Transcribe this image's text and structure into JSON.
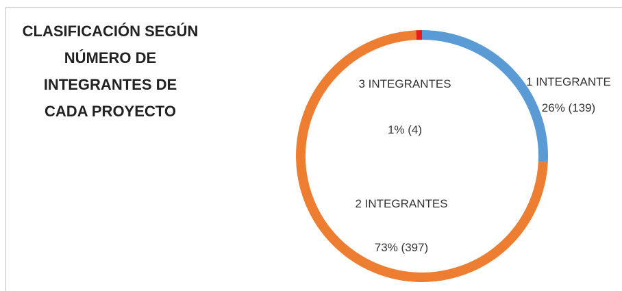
{
  "chart_data": {
    "type": "donut",
    "title": "CLASIFICACIÓN SEGÚN NÚMERO DE INTEGRANTES DE CADA PROYECTO",
    "categories": [
      "1 INTEGRANTE",
      "2 INTEGRANTES",
      "3 INTEGRANTES"
    ],
    "values": [
      139,
      397,
      4
    ],
    "value_labels": [
      "26% (139)",
      "73%  (397)",
      "1% (4)"
    ],
    "colors": [
      "#5b9bd5",
      "#ed7d31",
      "#e81c1c"
    ]
  }
}
